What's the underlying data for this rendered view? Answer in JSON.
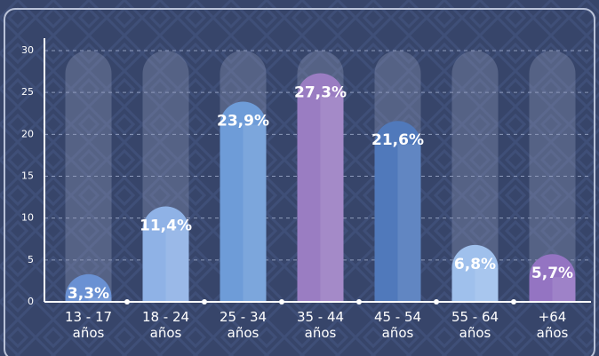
{
  "chart_data": {
    "type": "bar",
    "categories": [
      "13 - 17 años",
      "18 - 24 años",
      "25 - 34 años",
      "35 - 44 años",
      "45 - 54 años",
      "55 - 64 años",
      "+64 años"
    ],
    "values": [
      3.3,
      11.4,
      23.9,
      27.3,
      21.6,
      6.8,
      5.7
    ],
    "value_labels": [
      "3,3%",
      "11,4%",
      "23,9%",
      "27,3%",
      "21,6%",
      "6,8%",
      "5,7%"
    ],
    "colors": [
      "#6a91d3",
      "#8fb2e6",
      "#6e9cd8",
      "#9a7dc2",
      "#5079bb",
      "#9fc0ec",
      "#9474c2"
    ],
    "ylim": [
      0,
      30
    ],
    "yticks": [
      0,
      5,
      10,
      15,
      20,
      25,
      30
    ],
    "grid": true
  }
}
